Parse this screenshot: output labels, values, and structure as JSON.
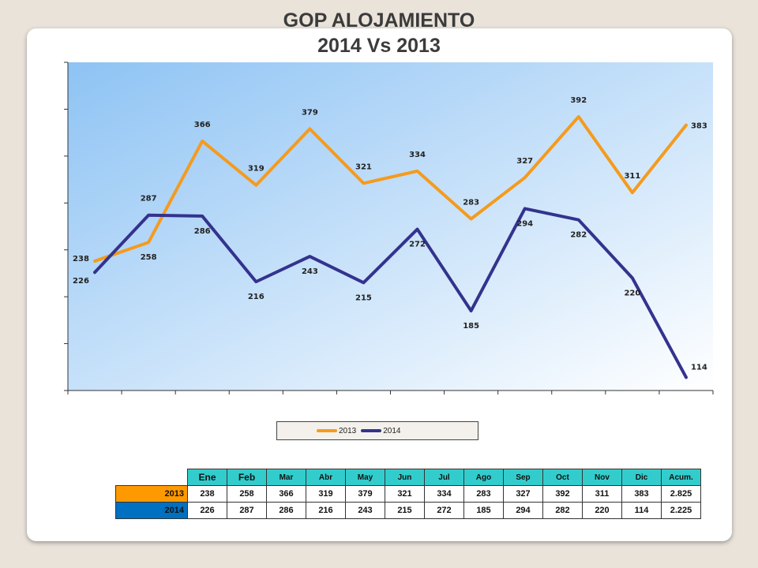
{
  "title_line1": "GOP  ALOJAMIENTO",
  "title_line2": "2014 Vs 2013",
  "colors": {
    "s2013": "#f49b1e",
    "s2014": "#33338e",
    "plot_top_left": "#8ec3f4",
    "plot_bottom_right": "#ffffff"
  },
  "chart_data": {
    "type": "line",
    "categories": [
      "Ene",
      "Feb",
      "Mar",
      "Abr",
      "May",
      "Jun",
      "Jul",
      "Ago",
      "Sep",
      "Oct",
      "Nov",
      "Dic"
    ],
    "series": [
      {
        "name": "2013",
        "values": [
          238,
          258,
          366,
          319,
          379,
          321,
          334,
          283,
          327,
          392,
          311,
          383
        ]
      },
      {
        "name": "2014",
        "values": [
          226,
          287,
          286,
          216,
          243,
          215,
          272,
          185,
          294,
          282,
          220,
          114
        ]
      }
    ],
    "ylim": [
      100,
      450
    ],
    "grid": false,
    "legend": "bottom"
  },
  "table": {
    "headers": [
      "Ene",
      "Feb",
      "Mar",
      "Abr",
      "May",
      "Jun",
      "Jul",
      "Ago",
      "Sep",
      "Oct",
      "Nov",
      "Dic",
      "Acum."
    ],
    "rows": [
      {
        "label": "2013",
        "values": [
          "238",
          "258",
          "366",
          "319",
          "379",
          "321",
          "334",
          "283",
          "327",
          "392",
          "311",
          "383",
          "2.825"
        ]
      },
      {
        "label": "2014",
        "values": [
          "226",
          "287",
          "286",
          "216",
          "243",
          "215",
          "272",
          "185",
          "294",
          "282",
          "220",
          "114",
          "2.225"
        ]
      }
    ]
  }
}
